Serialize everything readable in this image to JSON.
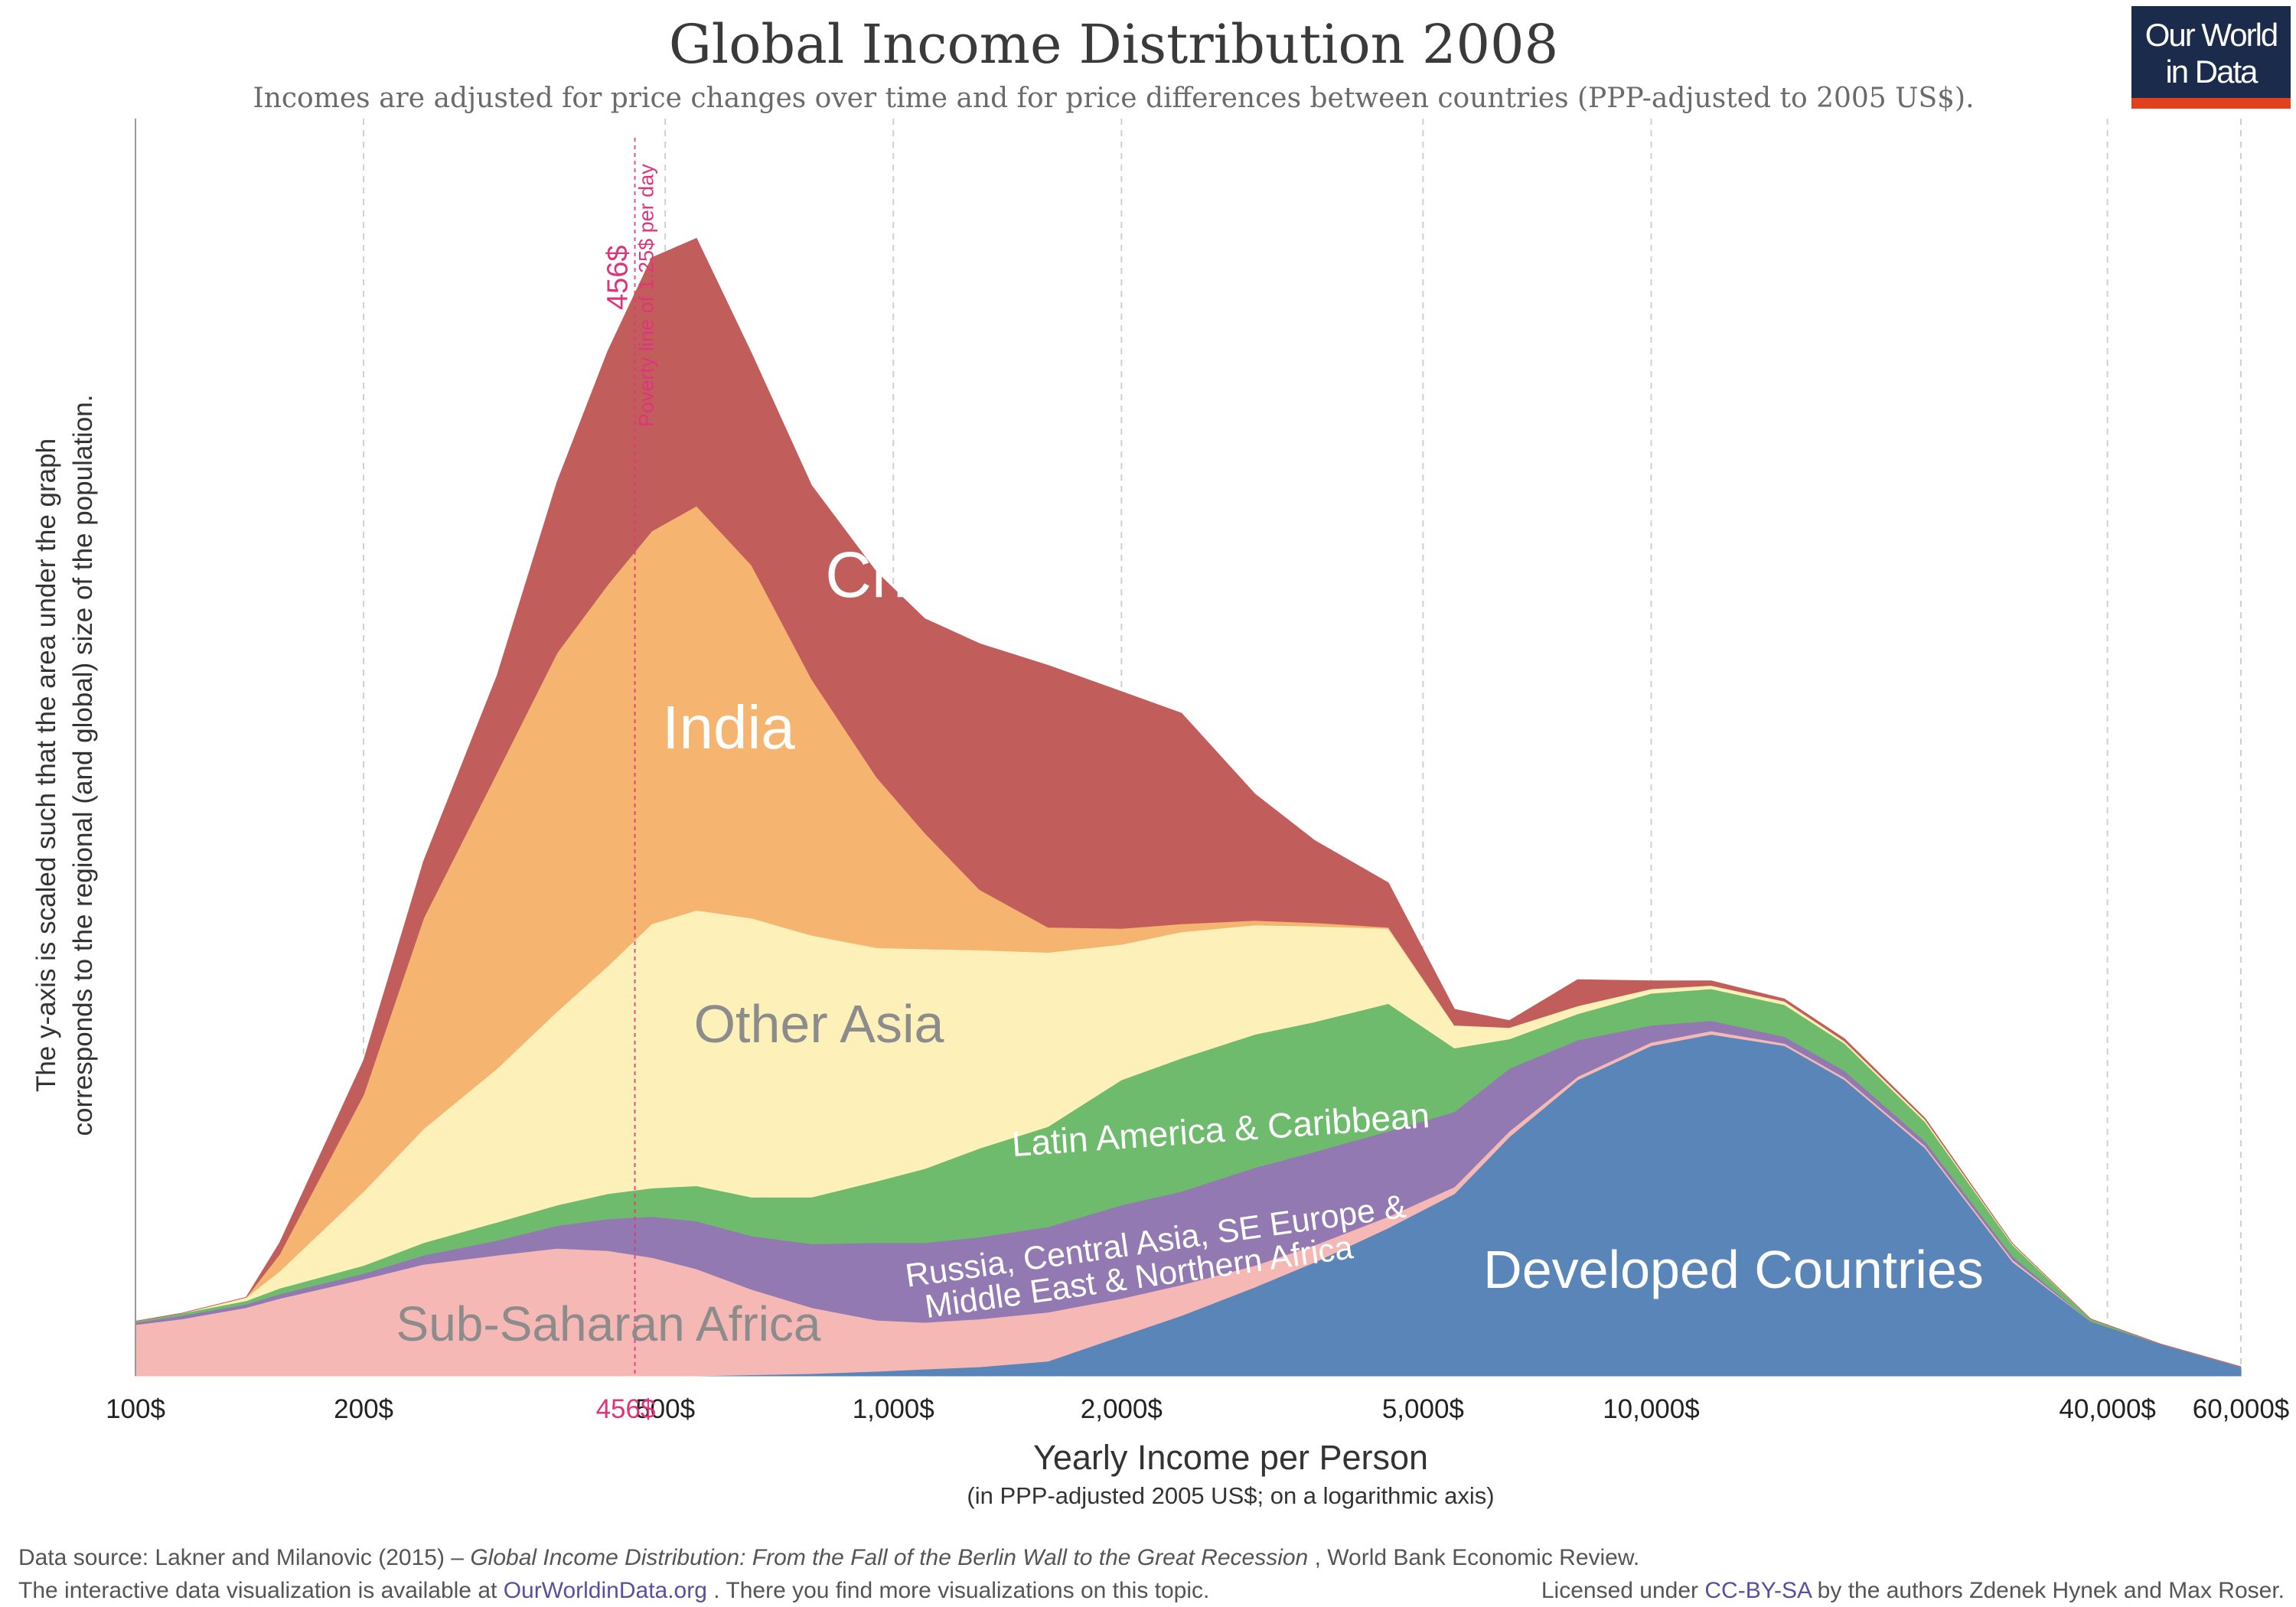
{
  "chart_data": {
    "type": "area",
    "stacked": true,
    "title": "Global Income Distribution 2008",
    "subtitle": "Incomes are adjusted for price changes over time and for price differences between countries (PPP-adjusted to 2005 US$).",
    "xlabel": "Yearly Income per Person",
    "xlabel_sub": "(in PPP-adjusted 2005 US$; on a logarithmic axis)",
    "ylabel_line1": "The y-axis is scaled such that the area under the graph",
    "ylabel_line2": "corresponds to the regional (and global) size of the population.",
    "x_scale": "log",
    "xlim": [
      100,
      60000
    ],
    "ylim": [
      0,
      100
    ],
    "x_ticks": [
      {
        "value": 100,
        "label": "100$"
      },
      {
        "value": 200,
        "label": "200$"
      },
      {
        "value": 500,
        "label": "500$"
      },
      {
        "value": 1000,
        "label": "1,000$"
      },
      {
        "value": 2000,
        "label": "2,000$"
      },
      {
        "value": 5000,
        "label": "5,000$"
      },
      {
        "value": 10000,
        "label": "10,000$"
      },
      {
        "value": 40000,
        "label": "40,000$"
      },
      {
        "value": 60000,
        "label": "60,000$"
      }
    ],
    "poverty_line": {
      "value": 456,
      "tick_label": "456$",
      "value_label": "456$",
      "note": "Poverty line of 1.25$ per day",
      "color": "#e0347a"
    },
    "x": [
      100,
      115,
      140,
      155,
      200,
      240,
      300,
      360,
      420,
      480,
      550,
      650,
      780,
      950,
      1100,
      1300,
      1600,
      2000,
      2400,
      3000,
      3600,
      4500,
      5500,
      6500,
      8000,
      10000,
      12000,
      15000,
      18000,
      23000,
      30000,
      38000,
      47000,
      60000
    ],
    "series": [
      {
        "name": "Developed Countries",
        "color": "#5985b8",
        "label": "Developed Countries",
        "values": [
          0,
          0,
          0,
          0,
          0,
          0,
          0,
          0,
          0,
          0,
          0,
          0.1,
          0.2,
          0.4,
          0.6,
          0.8,
          1.3,
          3.5,
          5.3,
          7.8,
          10,
          13,
          16,
          21,
          26,
          29,
          30,
          29,
          26,
          20,
          10,
          4.8,
          2.8,
          0.8
        ]
      },
      {
        "name": "Sub-Saharan Africa",
        "color": "#f5b8b4",
        "label": "Sub-Saharan Africa",
        "values": [
          4.5,
          5,
          6,
          6.8,
          8.5,
          9.8,
          10.6,
          11.2,
          11,
          10.4,
          9.4,
          7.5,
          5.8,
          4.5,
          4.1,
          4.2,
          4.3,
          3.3,
          2.7,
          1.9,
          1.5,
          1,
          0.6,
          0.5,
          0.3,
          0.3,
          0.3,
          0.2,
          0.2,
          0.2,
          0.2,
          0,
          0,
          0
        ]
      },
      {
        "name": "Russia, Central Asia, SE Europe & Middle East & Northern Africa",
        "color": "#9279b2",
        "label_line1": "Russia, Central Asia, SE Europe &",
        "label_line2": "Middle East & Northern Africa",
        "values": [
          0.2,
          0.3,
          0.3,
          0.4,
          0.5,
          0.8,
          1.3,
          2,
          2.8,
          3.6,
          4.2,
          4.7,
          5.6,
          6.8,
          7,
          7.2,
          7.5,
          8.2,
          8.2,
          8.6,
          8.2,
          7.5,
          6.6,
          5.5,
          3.2,
          1.5,
          0.9,
          0.6,
          0.6,
          0.4,
          0.3,
          0,
          0,
          0
        ]
      },
      {
        "name": "Latin America & Caribbean",
        "color": "#6fbb6d",
        "label": "Latin America & Caribbean",
        "values": [
          0.1,
          0.2,
          0.3,
          0.5,
          0.7,
          1.1,
          1.6,
          1.8,
          2.2,
          2.5,
          3.1,
          3.4,
          4.1,
          5.4,
          6.5,
          7.8,
          8.8,
          11,
          11.7,
          11.7,
          11.4,
          11.2,
          5.6,
          2.6,
          2.3,
          2.8,
          2.8,
          2.8,
          2.4,
          1.7,
          1,
          0.2,
          0,
          0
        ]
      },
      {
        "name": "Other Asia",
        "color": "#fdf0b9",
        "label": "Other Asia",
        "values": [
          0,
          0,
          0.3,
          1.5,
          6.5,
          10,
          13.5,
          17,
          20,
          23.2,
          24.2,
          24.5,
          23,
          20.5,
          19.3,
          17.4,
          15.3,
          11.9,
          11.1,
          9.6,
          8.4,
          6.6,
          2,
          1,
          0.7,
          0.4,
          0.3,
          0.3,
          0.2,
          0.2,
          0.1,
          0,
          0,
          0
        ]
      },
      {
        "name": "India",
        "color": "#f5b470",
        "label": "India",
        "values": [
          0,
          0,
          0,
          1.5,
          8.5,
          18.5,
          26,
          31.5,
          33.5,
          34.5,
          35.5,
          31,
          22.5,
          15,
          10.2,
          5.3,
          2.2,
          1.4,
          0.7,
          0.4,
          0.3,
          0.1,
          0,
          0,
          0,
          0,
          0,
          0,
          0,
          0,
          0,
          0,
          0,
          0
        ]
      },
      {
        "name": "China",
        "color": "#c15e5c",
        "label": "China",
        "values": [
          0,
          0,
          0,
          1,
          3,
          5,
          8.5,
          15,
          20.5,
          24,
          23.5,
          18.6,
          17,
          18,
          18.8,
          21.6,
          23,
          20.8,
          18.5,
          11.1,
          7.2,
          3.9,
          1.4,
          0.6,
          2.3,
          0.7,
          0.4,
          0.2,
          0.2,
          0.1,
          0,
          0,
          0,
          0
        ]
      }
    ]
  },
  "logo": {
    "line1": "Our World",
    "line2": "in Data",
    "bg_color": "#1a2b4c",
    "accent_color": "#e1411d"
  },
  "footer": {
    "source_prefix": "Data source: Lakner and Milanovic (2015) – ",
    "source_title": "Global Income Distribution: From the Fall of the Berlin Wall to the Great Recession",
    "source_suffix": ", World Bank Economic Review.",
    "interactive_prefix": "The interactive data visualization is available at ",
    "interactive_link": "OurWorldinData.org",
    "interactive_suffix": ". There you find more visualizations on this topic.",
    "license_prefix": "Licensed under ",
    "license_link": "CC-BY-SA",
    "license_suffix": " by the authors Zdenek Hynek and Max Roser.",
    "link_color": "#5a4f9e"
  }
}
